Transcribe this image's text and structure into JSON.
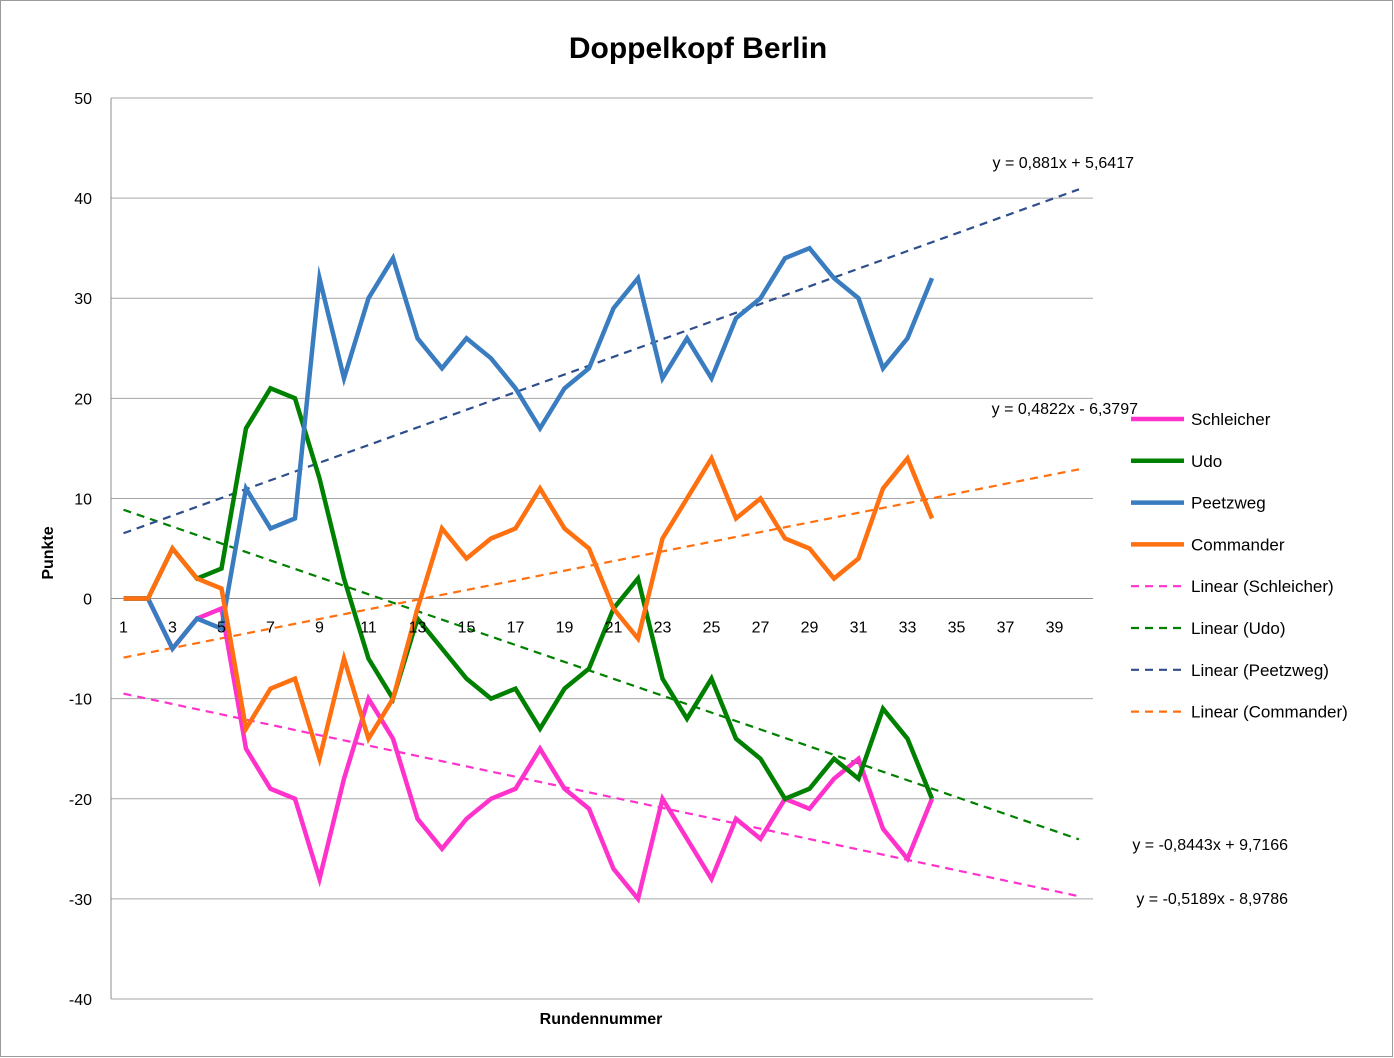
{
  "chart_data": {
    "type": "line",
    "title": "Doppelkopf Berlin",
    "xlabel": "Rundennummer",
    "ylabel": "Punkte",
    "ylim": [
      -40,
      50
    ],
    "yticks": [
      50,
      40,
      30,
      20,
      10,
      0,
      -10,
      -20,
      -30,
      -40
    ],
    "xticks": [
      1,
      3,
      5,
      7,
      9,
      11,
      13,
      15,
      17,
      19,
      21,
      23,
      25,
      27,
      29,
      31,
      33,
      35,
      37,
      39
    ],
    "xlim": [
      1,
      40
    ],
    "grid": "horizontal",
    "legend_position": "right",
    "x": [
      1,
      2,
      3,
      4,
      5,
      6,
      7,
      8,
      9,
      10,
      11,
      12,
      13,
      14,
      15,
      16,
      17,
      18,
      19,
      20,
      21,
      22,
      23,
      24,
      25,
      26,
      27,
      28,
      29,
      30,
      31,
      32,
      33,
      34
    ],
    "series": [
      {
        "name": "Schleicher",
        "color": "#ff33cc",
        "values": [
          0,
          0,
          -5,
          -2,
          -1,
          -15,
          -19,
          -20,
          -28,
          -18,
          -10,
          -14,
          -22,
          -25,
          -22,
          -20,
          -19,
          -15,
          -19,
          -21,
          -27,
          -30,
          -20,
          -24,
          -28,
          -22,
          -24,
          -20,
          -21,
          -18,
          -16,
          -23,
          -26,
          -20
        ]
      },
      {
        "name": "Udo",
        "color": "#008000",
        "values": [
          0,
          0,
          5,
          2,
          3,
          17,
          21,
          20,
          12,
          2,
          -6,
          -10,
          -2,
          -5,
          -8,
          -10,
          -9,
          -13,
          -9,
          -7,
          -1,
          2,
          -8,
          -12,
          -8,
          -14,
          -16,
          -20,
          -19,
          -16,
          -18,
          -11,
          -14,
          -20
        ]
      },
      {
        "name": "Peetzweg",
        "color": "#3a7cc0",
        "values": [
          0,
          0,
          -5,
          -2,
          -3,
          11,
          7,
          8,
          32,
          22,
          30,
          34,
          26,
          23,
          26,
          24,
          21,
          17,
          21,
          23,
          29,
          32,
          22,
          26,
          22,
          28,
          30,
          34,
          35,
          32,
          30,
          23,
          26,
          32
        ]
      },
      {
        "name": "Commander",
        "color": "#ff7010",
        "values": [
          0,
          0,
          5,
          2,
          1,
          -13,
          -9,
          -8,
          -16,
          -6,
          -14,
          -10,
          -1,
          7,
          4,
          6,
          7,
          11,
          7,
          5,
          -1,
          -4,
          6,
          10,
          14,
          8,
          10,
          6,
          5,
          2,
          4,
          11,
          14,
          8
        ]
      }
    ],
    "trendlines": [
      {
        "name": "Linear (Schleicher)",
        "color": "#ff33cc",
        "slope": -0.5189,
        "intercept": -8.9786,
        "equation": "y = -0,5189x - 8,9786"
      },
      {
        "name": "Linear (Udo)",
        "color": "#008000",
        "slope": -0.8443,
        "intercept": 9.7166,
        "equation": "y = -0,8443x + 9,7166"
      },
      {
        "name": "Linear (Peetzweg)",
        "color": "#2e4f8c",
        "slope": 0.881,
        "intercept": 5.6417,
        "equation": "y = 0,881x + 5,6417"
      },
      {
        "name": "Linear (Commander)",
        "color": "#ff7010",
        "slope": 0.4822,
        "intercept": -6.3797,
        "equation": "y = 0,4822x - 6,3797"
      }
    ]
  }
}
